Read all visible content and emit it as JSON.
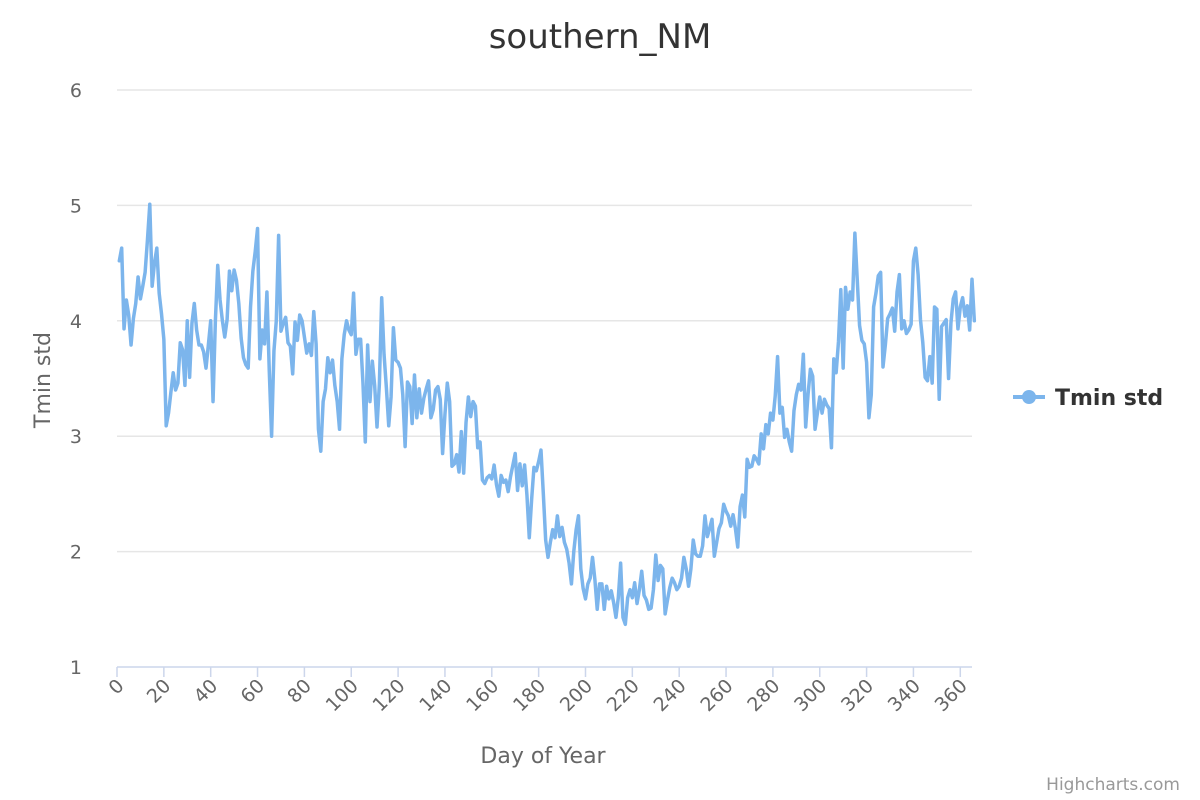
{
  "chart_data": {
    "type": "line",
    "title": "southern_NM",
    "xlabel": "Day of Year",
    "ylabel": "Tmin std",
    "xlim": [
      0,
      365
    ],
    "ylim": [
      1,
      6
    ],
    "x_ticks": [
      0,
      20,
      40,
      60,
      80,
      100,
      120,
      140,
      160,
      180,
      200,
      220,
      240,
      260,
      280,
      300,
      320,
      340,
      360
    ],
    "y_ticks": [
      1,
      2,
      3,
      4,
      5,
      6
    ],
    "grid": true,
    "legend_position": "right",
    "x_start": 1,
    "series": [
      {
        "name": "Tmin std",
        "color": "#7cb5ec",
        "values": [
          4.52,
          4.63,
          3.93,
          4.18,
          4.05,
          3.79,
          4.02,
          4.15,
          4.38,
          4.19,
          4.3,
          4.42,
          4.7,
          5.01,
          4.3,
          4.5,
          4.63,
          4.24,
          4.06,
          3.84,
          3.09,
          3.2,
          3.38,
          3.55,
          3.4,
          3.46,
          3.81,
          3.75,
          3.44,
          4.0,
          3.51,
          3.98,
          4.15,
          3.92,
          3.79,
          3.79,
          3.73,
          3.59,
          3.79,
          4.0,
          3.3,
          4.0,
          4.48,
          4.18,
          4.0,
          3.86,
          4.01,
          4.43,
          4.26,
          4.44,
          4.35,
          4.15,
          3.85,
          3.68,
          3.62,
          3.59,
          4.12,
          4.43,
          4.6,
          4.8,
          3.67,
          3.92,
          3.8,
          4.25,
          3.57,
          3.0,
          3.74,
          4.0,
          4.74,
          3.91,
          3.98,
          4.03,
          3.81,
          3.78,
          3.54,
          3.99,
          3.83,
          4.05,
          4.0,
          3.86,
          3.72,
          3.8,
          3.7,
          4.08,
          3.8,
          3.06,
          2.87,
          3.3,
          3.41,
          3.68,
          3.55,
          3.66,
          3.44,
          3.3,
          3.06,
          3.67,
          3.88,
          4.0,
          3.92,
          3.88,
          4.24,
          3.71,
          3.84,
          3.84,
          3.46,
          2.95,
          3.79,
          3.3,
          3.65,
          3.44,
          3.08,
          3.45,
          4.2,
          3.71,
          3.42,
          3.09,
          3.34,
          3.94,
          3.66,
          3.64,
          3.59,
          3.36,
          2.91,
          3.47,
          3.43,
          3.11,
          3.53,
          3.16,
          3.41,
          3.2,
          3.33,
          3.41,
          3.48,
          3.16,
          3.23,
          3.4,
          3.43,
          3.32,
          2.85,
          3.19,
          3.46,
          3.3,
          2.74,
          2.76,
          2.84,
          2.69,
          3.04,
          2.68,
          3.12,
          3.34,
          3.17,
          3.3,
          3.26,
          2.9,
          2.95,
          2.62,
          2.59,
          2.64,
          2.66,
          2.63,
          2.75,
          2.58,
          2.48,
          2.66,
          2.6,
          2.62,
          2.52,
          2.65,
          2.75,
          2.85,
          2.53,
          2.76,
          2.57,
          2.75,
          2.49,
          2.12,
          2.45,
          2.73,
          2.7,
          2.78,
          2.88,
          2.5,
          2.1,
          1.95,
          2.08,
          2.19,
          2.12,
          2.31,
          2.13,
          2.21,
          2.08,
          2.02,
          1.9,
          1.72,
          2.0,
          2.19,
          2.31,
          1.85,
          1.68,
          1.59,
          1.72,
          1.77,
          1.95,
          1.76,
          1.5,
          1.72,
          1.72,
          1.5,
          1.7,
          1.59,
          1.66,
          1.56,
          1.43,
          1.6,
          1.9,
          1.43,
          1.37,
          1.6,
          1.67,
          1.6,
          1.73,
          1.55,
          1.67,
          1.83,
          1.62,
          1.58,
          1.5,
          1.51,
          1.67,
          1.97,
          1.75,
          1.88,
          1.85,
          1.46,
          1.58,
          1.69,
          1.77,
          1.73,
          1.67,
          1.7,
          1.77,
          1.95,
          1.85,
          1.7,
          1.85,
          2.1,
          1.98,
          1.96,
          1.96,
          2.05,
          2.31,
          2.13,
          2.2,
          2.28,
          1.96,
          2.08,
          2.2,
          2.25,
          2.41,
          2.35,
          2.31,
          2.22,
          2.32,
          2.2,
          2.04,
          2.39,
          2.49,
          2.3,
          2.8,
          2.73,
          2.74,
          2.83,
          2.8,
          2.76,
          3.02,
          2.89,
          3.1,
          3.02,
          3.2,
          3.14,
          3.35,
          3.69,
          3.2,
          3.25,
          2.99,
          3.06,
          2.95,
          2.87,
          3.22,
          3.36,
          3.45,
          3.4,
          3.71,
          3.08,
          3.36,
          3.58,
          3.52,
          3.06,
          3.2,
          3.34,
          3.2,
          3.32,
          3.27,
          3.24,
          2.9,
          3.67,
          3.55,
          3.82,
          4.27,
          3.59,
          4.29,
          4.1,
          4.25,
          4.18,
          4.76,
          4.36,
          3.96,
          3.83,
          3.8,
          3.64,
          3.16,
          3.36,
          4.12,
          4.24,
          4.39,
          4.42,
          3.6,
          3.79,
          4.02,
          4.06,
          4.11,
          3.91,
          4.25,
          4.4,
          3.93,
          4.0,
          3.89,
          3.92,
          3.97,
          4.52,
          4.63,
          4.4,
          4.01,
          3.81,
          3.51,
          3.48,
          3.69,
          3.46,
          4.12,
          4.1,
          3.32,
          3.95,
          3.98,
          4.01,
          3.5,
          3.98,
          4.19,
          4.25,
          3.93,
          4.12,
          4.2,
          4.04,
          4.13,
          3.92,
          4.36,
          4.0
        ]
      }
    ],
    "credits": "Highcharts.com"
  }
}
